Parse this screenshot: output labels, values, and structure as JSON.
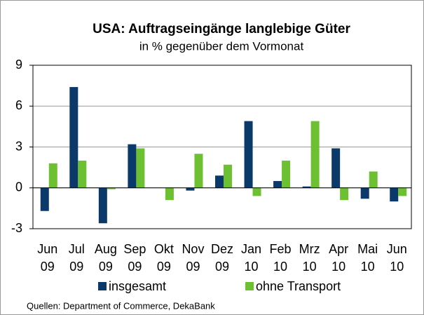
{
  "chart_data": {
    "type": "bar",
    "title": "USA: Auftragseingänge langlebige Güter",
    "subtitle": "in % gegenüber dem Vormonat",
    "categories": [
      "Jun 09",
      "Jul 09",
      "Aug 09",
      "Sep 09",
      "Okt 09",
      "Nov 09",
      "Dez 09",
      "Jan 10",
      "Feb 10",
      "Mrz 10",
      "Apr 10",
      "Mai 10",
      "Jun 10"
    ],
    "series": [
      {
        "name": "insgesamt",
        "color": "#0b3a6a",
        "values": [
          -1.7,
          7.4,
          -2.6,
          3.2,
          0,
          -0.2,
          0.9,
          4.9,
          0.5,
          0.1,
          2.9,
          -0.8,
          -1.0
        ]
      },
      {
        "name": "ohne Transport",
        "color": "#6cc031",
        "values": [
          1.8,
          2.0,
          -0.1,
          2.9,
          -0.9,
          2.5,
          1.7,
          -0.6,
          2.0,
          4.9,
          -0.9,
          1.2,
          -0.6
        ]
      }
    ],
    "ylim": [
      -3,
      9
    ],
    "yticks": [
      -3,
      0,
      3,
      6,
      9
    ],
    "grid": true,
    "legend": "bottom",
    "source": "Quellen: Department of Commerce, DekaBank"
  }
}
